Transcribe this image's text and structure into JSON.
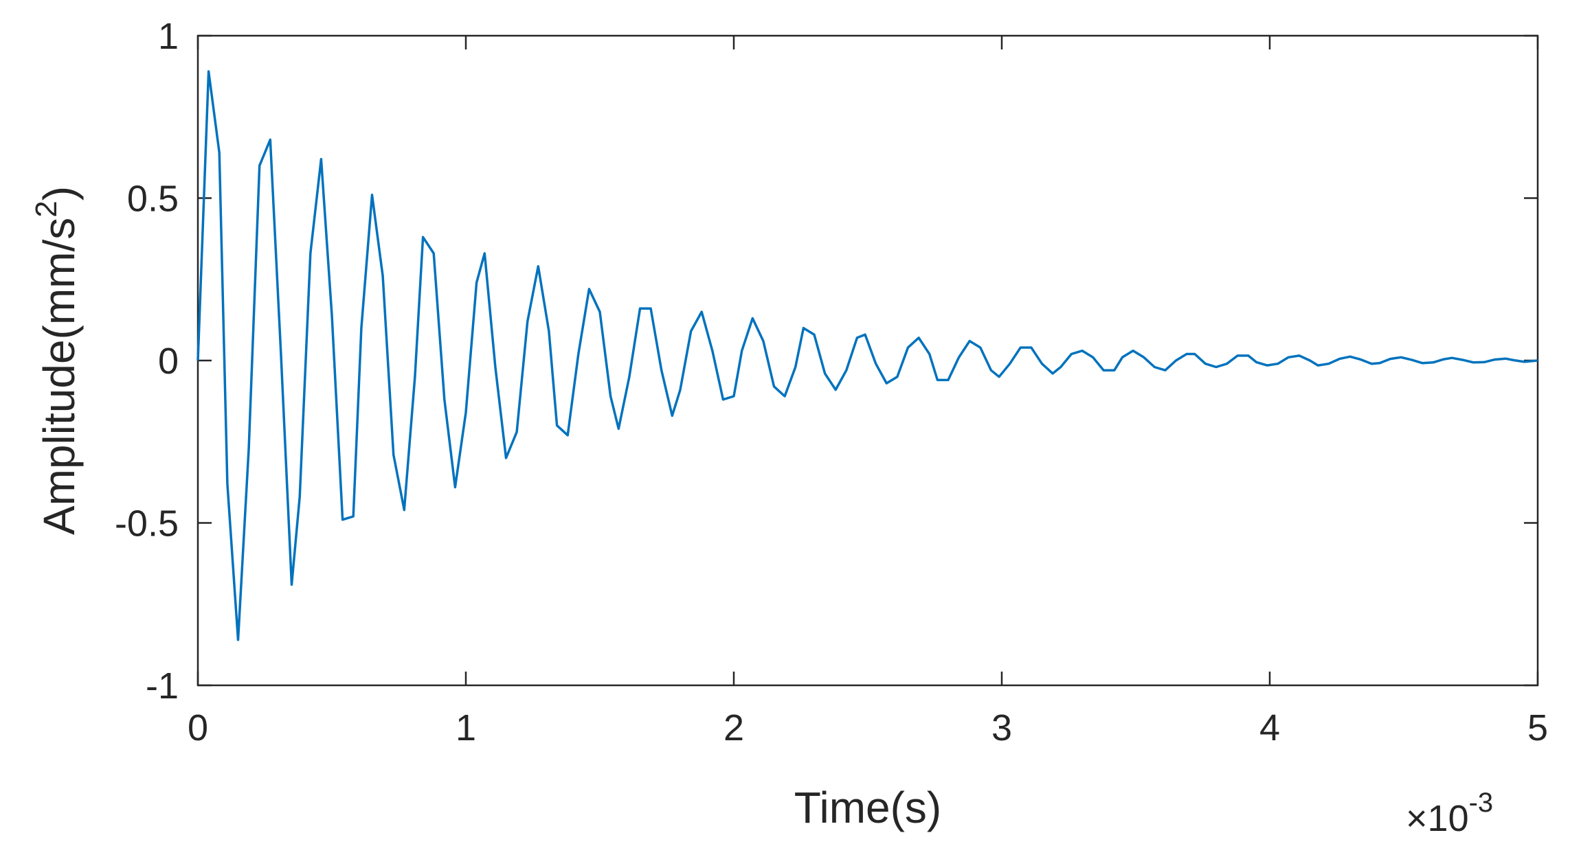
{
  "chart_data": {
    "type": "line",
    "title": "",
    "xlabel": "Time(s)",
    "ylabel": "Amplitude(mm/s",
    "ylabel_superscript": "2",
    "ylabel_suffix": ")",
    "x_exponent_label": "×10",
    "x_exponent_power": "-3",
    "xlim": [
      0,
      5
    ],
    "ylim": [
      -1,
      1
    ],
    "xticks": [
      0,
      1,
      2,
      3,
      4,
      5
    ],
    "xtick_labels": [
      "0",
      "1",
      "2",
      "3",
      "4",
      "5"
    ],
    "yticks": [
      -1,
      -0.5,
      0,
      0.5,
      1
    ],
    "ytick_labels": [
      "-1",
      "-0.5",
      "0",
      "0.5",
      "1"
    ],
    "grid": false,
    "legend": "none",
    "series_color": "#0072BD",
    "axes_color": "#262626",
    "series": [
      {
        "x": [
          0,
          0.04,
          0.08,
          0.11,
          0.15,
          0.19,
          0.23,
          0.27,
          0.31,
          0.35,
          0.38,
          0.42,
          0.46,
          0.5,
          0.54,
          0.58,
          0.61,
          0.65,
          0.69,
          0.73,
          0.77,
          0.81,
          0.84,
          0.88,
          0.92,
          0.96,
          1.0,
          1.04,
          1.07,
          1.11,
          1.15,
          1.19,
          1.23,
          1.27,
          1.31,
          1.34,
          1.38,
          1.42,
          1.46,
          1.5,
          1.54,
          1.57,
          1.61,
          1.65,
          1.69,
          1.73,
          1.77,
          1.8,
          1.84,
          1.88,
          1.92,
          1.96,
          2.0,
          2.03,
          2.07,
          2.11,
          2.15,
          2.19,
          2.23,
          2.26,
          2.3,
          2.34,
          2.38,
          2.42,
          2.46,
          2.49,
          2.53,
          2.57,
          2.61,
          2.65,
          2.69,
          2.73,
          2.76,
          2.8,
          2.84,
          2.88,
          2.92,
          2.96,
          2.99,
          3.03,
          3.07,
          3.11,
          3.15,
          3.19,
          3.22,
          3.26,
          3.3,
          3.34,
          3.38,
          3.42,
          3.45,
          3.49,
          3.53,
          3.57,
          3.61,
          3.65,
          3.69,
          3.72,
          3.76,
          3.8,
          3.84,
          3.88,
          3.92,
          3.95,
          3.99,
          4.03,
          4.07,
          4.11,
          4.15,
          4.18,
          4.22,
          4.26,
          4.3,
          4.34,
          4.38,
          4.41,
          4.45,
          4.49,
          4.53,
          4.57,
          4.61,
          4.65,
          4.68,
          4.72,
          4.76,
          4.8,
          4.84,
          4.88,
          4.91,
          4.95,
          5.0
        ],
        "y": [
          0,
          0.89,
          0.64,
          -0.38,
          -0.86,
          -0.27,
          0.6,
          0.68,
          0.02,
          -0.69,
          -0.42,
          0.33,
          0.62,
          0.14,
          -0.49,
          -0.48,
          0.1,
          0.51,
          0.26,
          -0.29,
          -0.46,
          -0.05,
          0.38,
          0.33,
          -0.12,
          -0.39,
          -0.16,
          0.24,
          0.33,
          -0.02,
          -0.3,
          -0.22,
          0.12,
          0.29,
          0.09,
          -0.2,
          -0.23,
          0.02,
          0.22,
          0.15,
          -0.11,
          -0.21,
          -0.05,
          0.16,
          0.16,
          -0.03,
          -0.17,
          -0.09,
          0.09,
          0.15,
          0.03,
          -0.12,
          -0.11,
          0.03,
          0.13,
          0.06,
          -0.08,
          -0.11,
          -0.02,
          0.1,
          0.08,
          -0.04,
          -0.09,
          -0.03,
          0.07,
          0.08,
          -0.01,
          -0.07,
          -0.05,
          0.04,
          0.07,
          0.02,
          -0.06,
          -0.06,
          0.01,
          0.06,
          0.04,
          -0.03,
          -0.05,
          -0.01,
          0.04,
          0.04,
          -0.01,
          -0.04,
          -0.02,
          0.02,
          0.03,
          0.01,
          -0.03,
          -0.03,
          0.01,
          0.03,
          0.01,
          -0.02,
          -0.03,
          0.0,
          0.02,
          0.02,
          -0.01,
          -0.02,
          -0.01,
          0.015,
          0.015,
          -0.005,
          -0.015,
          -0.01,
          0.01,
          0.015,
          0.0,
          -0.015,
          -0.01,
          0.005,
          0.012,
          0.003,
          -0.01,
          -0.008,
          0.005,
          0.01,
          0.002,
          -0.008,
          -0.006,
          0.004,
          0.008,
          0.002,
          -0.006,
          -0.005,
          0.003,
          0.006,
          0.001,
          -0.004,
          0.0
        ]
      }
    ]
  }
}
